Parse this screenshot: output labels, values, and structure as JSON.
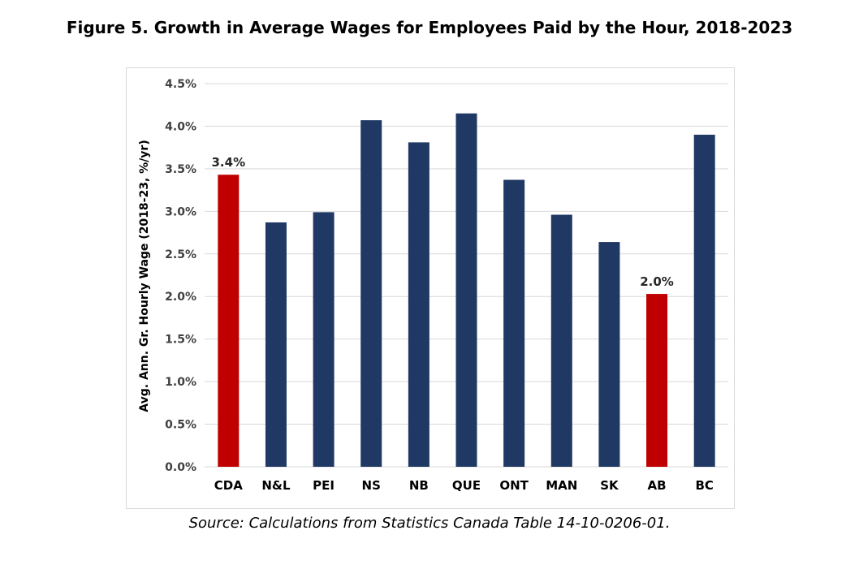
{
  "figure": {
    "title": "Figure 5. Growth in Average Wages for Employees Paid by the Hour, 2018-2023",
    "source": "Source: Calculations from Statistics Canada Table 14-10-0206-01."
  },
  "colors": {
    "highlight": "#c00000",
    "default": "#1f3864",
    "grid": "#d9d9d9"
  },
  "chart_data": {
    "type": "bar",
    "title": "",
    "xlabel": "",
    "ylabel": "Avg. Ann. Gr. Hourly Wage (2018-23, %/yr)",
    "ylim": [
      0,
      4.5
    ],
    "yticks": [
      "0.0%",
      "0.5%",
      "1.0%",
      "1.5%",
      "2.0%",
      "2.5%",
      "3.0%",
      "3.5%",
      "4.0%",
      "4.5%"
    ],
    "grid": true,
    "legend": "none",
    "categories": [
      "CDA",
      "N&L",
      "PEI",
      "NS",
      "NB",
      "QUE",
      "ONT",
      "MAN",
      "SK",
      "AB",
      "BC"
    ],
    "values": [
      3.43,
      2.87,
      2.99,
      4.07,
      3.81,
      4.15,
      3.37,
      2.96,
      2.64,
      2.03,
      3.9
    ],
    "highlighted": [
      "CDA",
      "AB"
    ],
    "data_labels": [
      {
        "category": "CDA",
        "text": "3.4%"
      },
      {
        "category": "AB",
        "text": "2.0%"
      }
    ]
  }
}
